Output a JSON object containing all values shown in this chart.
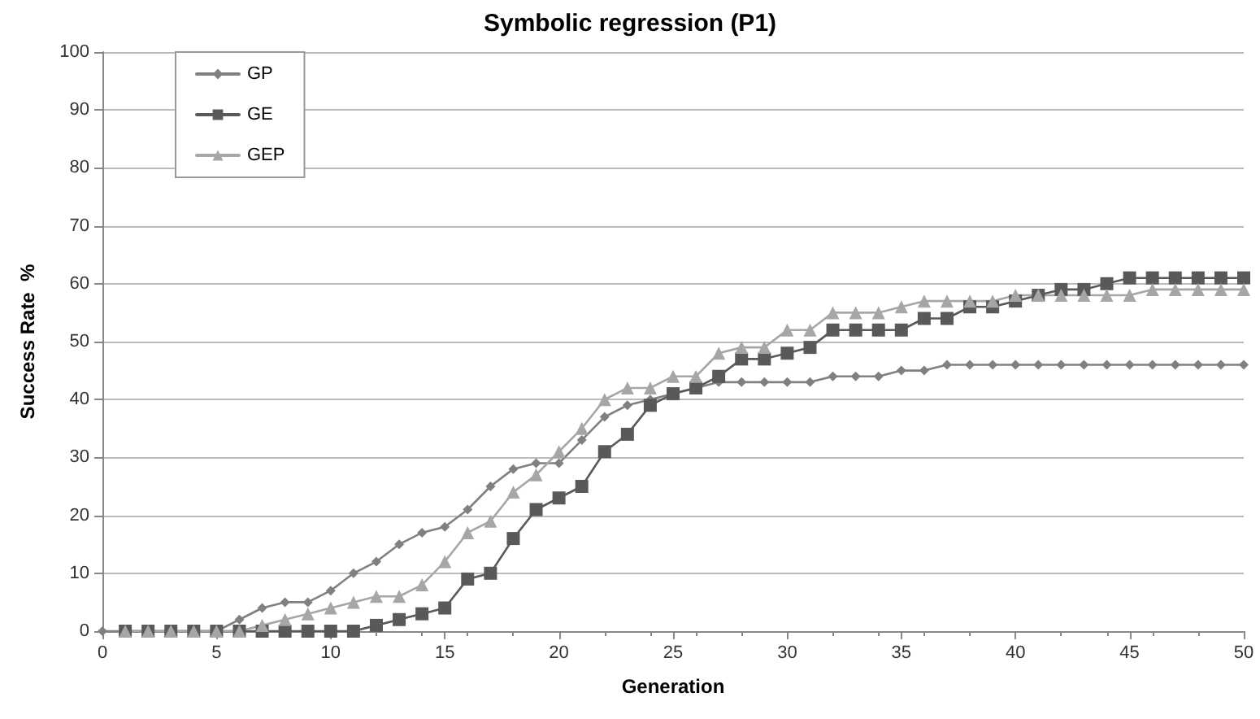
{
  "chart_data": {
    "type": "line",
    "title": "Symbolic regression (P1)",
    "xlabel": "Generation",
    "ylabel": "Success Rate  %",
    "x": [
      0,
      1,
      2,
      3,
      4,
      5,
      6,
      7,
      8,
      9,
      10,
      11,
      12,
      13,
      14,
      15,
      16,
      17,
      18,
      19,
      20,
      21,
      22,
      23,
      24,
      25,
      26,
      27,
      28,
      29,
      30,
      31,
      32,
      33,
      34,
      35,
      36,
      37,
      38,
      39,
      40,
      41,
      42,
      43,
      44,
      45,
      46,
      47,
      48,
      49,
      50
    ],
    "series": [
      {
        "name": "GP",
        "color": "#808080",
        "marker": "diamond",
        "values": [
          0,
          0,
          0,
          0,
          0,
          0,
          2,
          4,
          5,
          5,
          7,
          10,
          12,
          15,
          17,
          18,
          21,
          25,
          28,
          29,
          29,
          33,
          37,
          39,
          40,
          41,
          42,
          43,
          43,
          43,
          43,
          43,
          44,
          44,
          44,
          45,
          45,
          46,
          46,
          46,
          46,
          46,
          46,
          46,
          46,
          46,
          46,
          46,
          46,
          46,
          46
        ]
      },
      {
        "name": "GE",
        "color": "#595959",
        "marker": "square",
        "values": [
          null,
          0,
          0,
          0,
          0,
          0,
          0,
          0,
          0,
          0,
          0,
          0,
          1,
          2,
          3,
          4,
          9,
          10,
          16,
          21,
          23,
          25,
          31,
          34,
          39,
          41,
          42,
          44,
          47,
          47,
          48,
          49,
          52,
          52,
          52,
          52,
          54,
          54,
          56,
          56,
          57,
          58,
          59,
          59,
          60,
          61,
          61,
          61,
          61,
          61,
          61
        ]
      },
      {
        "name": "GEP",
        "color": "#a6a6a6",
        "marker": "triangle",
        "values": [
          null,
          0,
          0,
          0,
          0,
          0,
          0,
          1,
          2,
          3,
          4,
          5,
          6,
          6,
          8,
          12,
          17,
          19,
          24,
          27,
          31,
          35,
          40,
          42,
          42,
          44,
          44,
          48,
          49,
          49,
          52,
          52,
          55,
          55,
          55,
          56,
          57,
          57,
          57,
          57,
          58,
          58,
          58,
          58,
          58,
          58,
          59,
          59,
          59,
          59,
          59
        ]
      }
    ],
    "xlim": [
      0,
      50
    ],
    "xticks": [
      0,
      5,
      10,
      15,
      20,
      25,
      30,
      35,
      40,
      45,
      50
    ],
    "ylim": [
      0,
      100
    ],
    "yticks": [
      0,
      10,
      20,
      30,
      40,
      50,
      60,
      70,
      80,
      90,
      100
    ],
    "grid": "y",
    "legend": "top left",
    "line_style": "solid"
  }
}
